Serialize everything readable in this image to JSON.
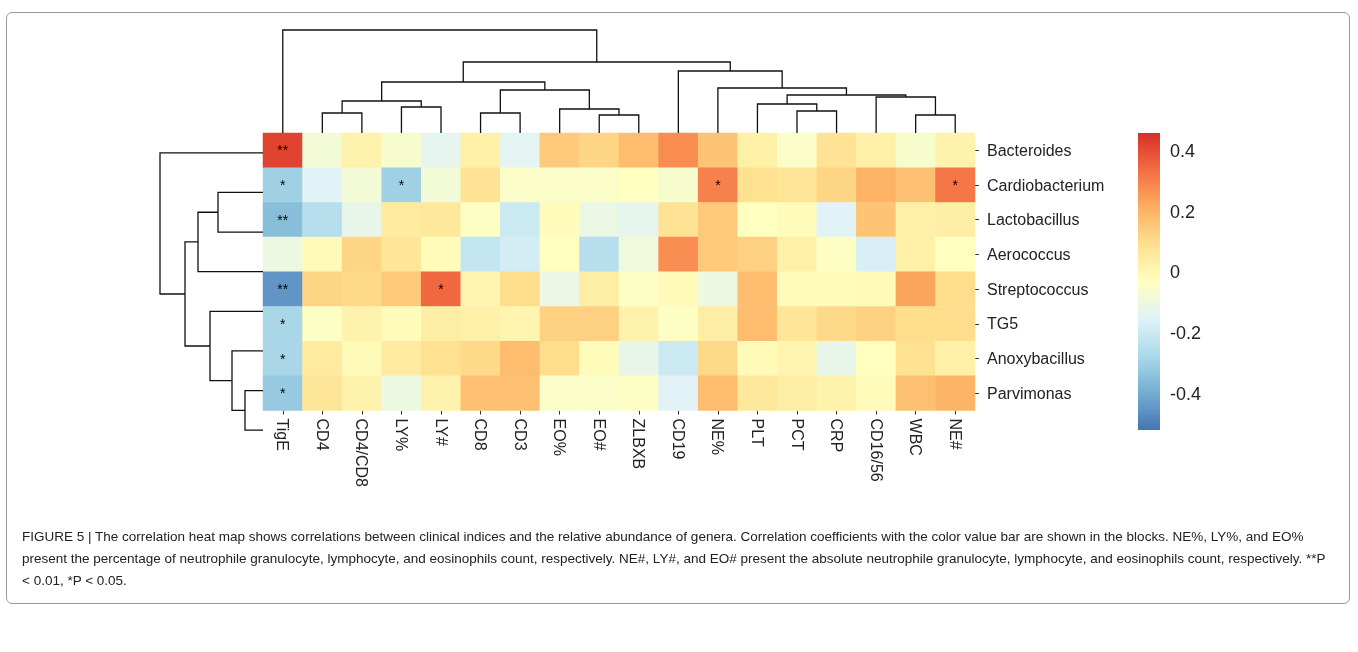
{
  "chart_data": {
    "type": "heatmap",
    "categories": [
      "TigE",
      "CD4",
      "CD4/CD8",
      "LY%",
      "LY#",
      "CD8",
      "CD3",
      "EO%",
      "EO#",
      "ZLBXB",
      "CD19",
      "NE%",
      "PLT",
      "PCT",
      "CRP",
      "CD16/56",
      "WBC",
      "NE#"
    ],
    "y_categories": [
      "Bacteroides",
      "Cardiobacterium",
      "Lactobacillus",
      "Aerococcus",
      "Streptococcus",
      "TG5",
      "Anoxybacillus",
      "Parvimonas"
    ],
    "cells": [
      [
        0.42,
        -0.08,
        0.02,
        -0.06,
        -0.13,
        0.03,
        -0.14,
        0.15,
        0.12,
        0.18,
        0.28,
        0.16,
        0.03,
        -0.05,
        0.08,
        0.03,
        -0.06,
        0.02
      ],
      [
        -0.3,
        -0.15,
        -0.08,
        -0.3,
        -0.08,
        0.08,
        -0.05,
        -0.05,
        -0.05,
        -0.03,
        -0.06,
        0.3,
        0.09,
        0.07,
        0.12,
        0.2,
        0.17,
        0.32
      ],
      [
        -0.35,
        -0.25,
        -0.12,
        0.05,
        0.06,
        -0.04,
        -0.2,
        -0.02,
        -0.11,
        -0.13,
        0.08,
        0.15,
        -0.03,
        -0.02,
        -0.15,
        0.16,
        0.03,
        0.04
      ],
      [
        -0.1,
        -0.01,
        0.12,
        0.07,
        -0.02,
        -0.22,
        -0.18,
        -0.03,
        -0.25,
        -0.09,
        0.28,
        0.15,
        0.13,
        0.03,
        -0.04,
        -0.17,
        0.03,
        -0.03
      ],
      [
        -0.45,
        0.12,
        0.11,
        0.15,
        0.35,
        0.01,
        0.1,
        -0.11,
        0.04,
        -0.04,
        -0.01,
        -0.1,
        0.18,
        -0.02,
        -0.02,
        -0.01,
        0.23,
        0.1
      ],
      [
        -0.28,
        -0.04,
        0.02,
        -0.02,
        0.04,
        0.03,
        0.01,
        0.13,
        0.13,
        0.02,
        -0.04,
        0.04,
        0.18,
        0.07,
        0.11,
        0.13,
        0.1,
        0.1
      ],
      [
        -0.28,
        0.05,
        -0.01,
        0.05,
        0.09,
        0.11,
        0.18,
        0.1,
        -0.02,
        -0.12,
        -0.2,
        0.11,
        -0.01,
        0.01,
        -0.12,
        -0.03,
        0.09,
        0.03
      ],
      [
        -0.32,
        0.07,
        0.02,
        -0.1,
        0.02,
        0.17,
        0.17,
        -0.05,
        -0.05,
        -0.04,
        -0.15,
        0.18,
        0.06,
        0.04,
        0.02,
        -0.02,
        0.17,
        0.2
      ]
    ],
    "cell_labels": [
      [
        "**",
        null,
        null,
        null,
        null,
        null,
        null,
        null,
        null,
        null,
        null,
        null,
        null,
        null,
        null,
        null,
        null,
        null
      ],
      [
        "*",
        null,
        null,
        "*",
        null,
        null,
        null,
        null,
        null,
        null,
        null,
        "*",
        null,
        null,
        null,
        null,
        null,
        "*"
      ],
      [
        "**",
        null,
        null,
        null,
        null,
        null,
        null,
        null,
        null,
        null,
        null,
        null,
        null,
        null,
        null,
        null,
        null,
        null
      ],
      [
        null,
        null,
        null,
        null,
        null,
        null,
        null,
        null,
        null,
        null,
        null,
        null,
        null,
        null,
        null,
        null,
        null,
        null
      ],
      [
        "**",
        null,
        null,
        null,
        "*",
        null,
        null,
        null,
        null,
        null,
        null,
        null,
        null,
        null,
        null,
        null,
        null,
        null
      ],
      [
        "*",
        null,
        null,
        null,
        null,
        null,
        null,
        null,
        null,
        null,
        null,
        null,
        null,
        null,
        null,
        null,
        null,
        null
      ],
      [
        "*",
        null,
        null,
        null,
        null,
        null,
        null,
        null,
        null,
        null,
        null,
        null,
        null,
        null,
        null,
        null,
        null,
        null
      ],
      [
        "*",
        null,
        null,
        null,
        null,
        null,
        null,
        null,
        null,
        null,
        null,
        null,
        null,
        null,
        null,
        null,
        null,
        null
      ]
    ],
    "clim": [
      -0.52,
      0.46
    ],
    "cticks": [
      0.4,
      0.2,
      0,
      -0.2,
      -0.4
    ],
    "annotations": [
      "FIGURE 5 | The correlation heat map shows correlations between clinical indices and the relative abundance of genera. Correlation coefficients with the color value bar are shown in the blocks. NE%, LY%, and EO% present the percentage of neutrophile granulocyte, lymphocyte, and eosinophils count, respectively. NE#, LY#, and EO# present the absolute neutrophile granulocyte, lymphocyte, and eosinophils count, respectively. **P < 0.01, *P < 0.05."
    ]
  }
}
